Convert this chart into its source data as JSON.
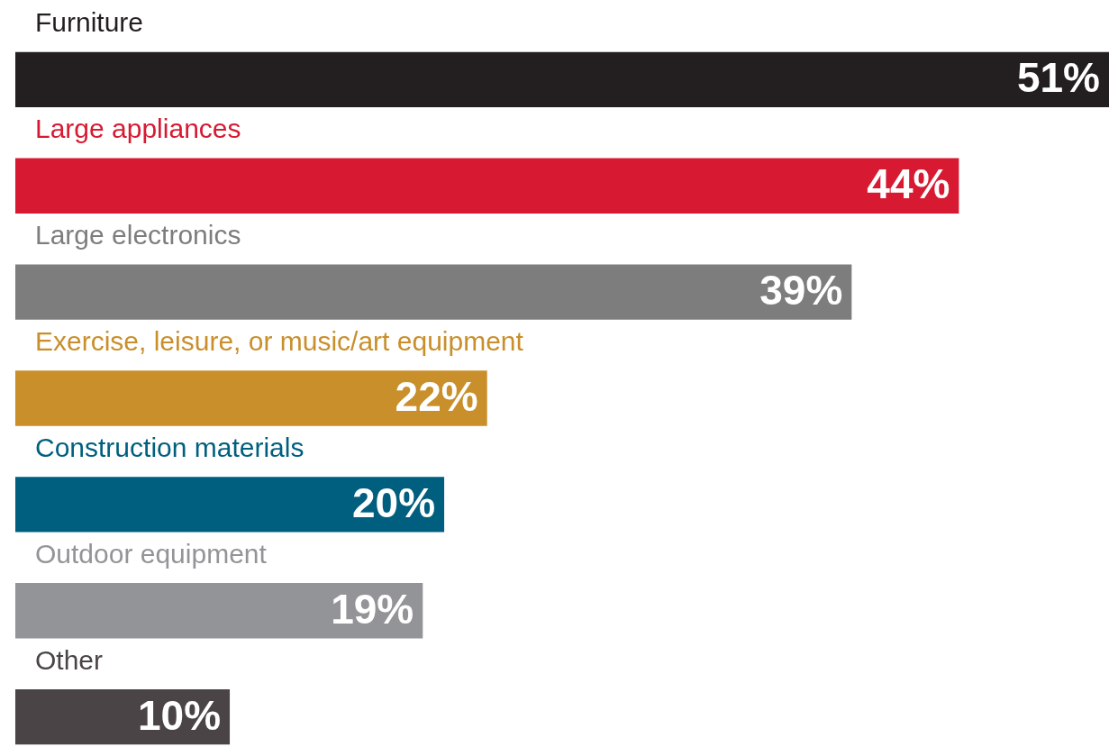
{
  "chart_data": {
    "type": "bar",
    "orientation": "horizontal",
    "categories": [
      "Furniture",
      "Large appliances",
      "Large electronics",
      "Exercise, leisure, or music/art equipment",
      "Construction materials",
      "Outdoor equipment",
      "Other"
    ],
    "values": [
      51,
      44,
      39,
      22,
      20,
      19,
      10
    ],
    "colors": [
      "#231f20",
      "#d71a32",
      "#7d7d7d",
      "#c98f2b",
      "#005f7f",
      "#939498",
      "#4a4446"
    ],
    "value_labels": [
      "51%",
      "44%",
      "39%",
      "22%",
      "20%",
      "19%",
      "10%"
    ]
  }
}
